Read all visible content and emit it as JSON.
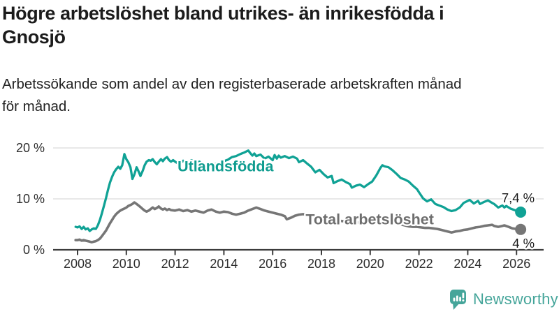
{
  "header": {
    "title_lines": [
      "Högre arbetslöshet bland utrikes- än inrikesfödda i",
      "Gnosjö"
    ],
    "subtitle_lines": [
      "Arbetssökande som andel av den registerbaserade arbetskraften månad",
      "för månad."
    ]
  },
  "footer": {
    "brand": "Newsworthy"
  },
  "colors": {
    "utlandsfodda": "#10a295",
    "utlandsfodda_label": "#0f9c8f",
    "total": "#767676",
    "total_label": "#6e6e6e",
    "axis": "#3c3c3c",
    "grid": "#d9d9d9",
    "tick_text": "#2e2e2e",
    "end_label_text": "#1c1c1c",
    "logo": "#45a59a",
    "background": "#ffffff"
  },
  "chart_data": {
    "type": "line",
    "title": "Högre arbetslöshet bland utrikes- än inrikesfödda i Gnosjö",
    "subtitle": "Arbetssökande som andel av den registerbaserade arbetskraften månad för månad.",
    "xlabel": "",
    "ylabel": "",
    "unit": "%",
    "grid": "horizontal",
    "legend_position": "inline-labels",
    "xlim": [
      2007.9,
      2026.3
    ],
    "ylim": [
      0,
      20
    ],
    "xticks": [
      2008,
      2010,
      2012,
      2014,
      2016,
      2018,
      2020,
      2022,
      2024,
      2026
    ],
    "yticks": [
      {
        "v": 0,
        "label": "0 %"
      },
      {
        "v": 10,
        "label": "10 %"
      },
      {
        "v": 20,
        "label": "20 %"
      }
    ],
    "series": [
      {
        "key": "total",
        "name": "Total arbetslöshet",
        "end_label": "4 %",
        "end_value": 4.0,
        "label_x": 2017.35,
        "label_y": 5.0,
        "points": [
          [
            2007.92,
            1.9
          ],
          [
            2008.0,
            1.9
          ],
          [
            2008.08,
            2.0
          ],
          [
            2008.17,
            1.8
          ],
          [
            2008.25,
            1.9
          ],
          [
            2008.33,
            1.8
          ],
          [
            2008.42,
            1.7
          ],
          [
            2008.5,
            1.6
          ],
          [
            2008.58,
            1.5
          ],
          [
            2008.67,
            1.6
          ],
          [
            2008.75,
            1.7
          ],
          [
            2008.83,
            1.9
          ],
          [
            2008.92,
            2.2
          ],
          [
            2009.0,
            2.7
          ],
          [
            2009.08,
            3.2
          ],
          [
            2009.17,
            3.8
          ],
          [
            2009.25,
            4.5
          ],
          [
            2009.33,
            5.2
          ],
          [
            2009.42,
            5.9
          ],
          [
            2009.5,
            6.5
          ],
          [
            2009.58,
            7.0
          ],
          [
            2009.67,
            7.4
          ],
          [
            2009.75,
            7.7
          ],
          [
            2009.83,
            7.9
          ],
          [
            2009.92,
            8.1
          ],
          [
            2010.0,
            8.3
          ],
          [
            2010.08,
            8.6
          ],
          [
            2010.17,
            8.8
          ],
          [
            2010.25,
            9.0
          ],
          [
            2010.33,
            9.3
          ],
          [
            2010.42,
            9.0
          ],
          [
            2010.5,
            8.7
          ],
          [
            2010.58,
            8.4
          ],
          [
            2010.67,
            8.0
          ],
          [
            2010.75,
            7.7
          ],
          [
            2010.83,
            7.5
          ],
          [
            2010.92,
            7.7
          ],
          [
            2011.0,
            8.0
          ],
          [
            2011.08,
            8.3
          ],
          [
            2011.17,
            8.0
          ],
          [
            2011.25,
            8.2
          ],
          [
            2011.33,
            8.5
          ],
          [
            2011.42,
            8.1
          ],
          [
            2011.5,
            7.9
          ],
          [
            2011.58,
            8.1
          ],
          [
            2011.67,
            7.8
          ],
          [
            2011.75,
            8.0
          ],
          [
            2011.83,
            7.8
          ],
          [
            2012.0,
            7.7
          ],
          [
            2012.17,
            7.9
          ],
          [
            2012.33,
            7.6
          ],
          [
            2012.5,
            7.8
          ],
          [
            2012.67,
            7.5
          ],
          [
            2012.83,
            7.7
          ],
          [
            2013.0,
            7.5
          ],
          [
            2013.17,
            7.3
          ],
          [
            2013.33,
            7.7
          ],
          [
            2013.5,
            7.9
          ],
          [
            2013.67,
            7.5
          ],
          [
            2013.83,
            7.3
          ],
          [
            2014.0,
            7.5
          ],
          [
            2014.17,
            7.4
          ],
          [
            2014.33,
            7.1
          ],
          [
            2014.5,
            6.9
          ],
          [
            2014.67,
            7.1
          ],
          [
            2014.83,
            7.3
          ],
          [
            2015.0,
            7.7
          ],
          [
            2015.17,
            8.0
          ],
          [
            2015.33,
            8.3
          ],
          [
            2015.5,
            8.0
          ],
          [
            2015.67,
            7.7
          ],
          [
            2015.83,
            7.5
          ],
          [
            2016.0,
            7.3
          ],
          [
            2016.17,
            7.1
          ],
          [
            2016.33,
            6.9
          ],
          [
            2016.5,
            6.6
          ],
          [
            2016.58,
            6.0
          ],
          [
            2016.75,
            6.3
          ],
          [
            2016.92,
            6.7
          ],
          [
            2017.08,
            6.9
          ],
          [
            2017.25,
            7.0
          ],
          [
            2017.42,
            6.9
          ],
          [
            2017.58,
            6.7
          ],
          [
            2017.75,
            6.6
          ],
          [
            2017.92,
            6.4
          ],
          [
            2018.08,
            6.2
          ],
          [
            2018.25,
            6.1
          ],
          [
            2018.42,
            5.9
          ],
          [
            2018.58,
            5.8
          ],
          [
            2018.75,
            5.7
          ],
          [
            2018.92,
            5.6
          ],
          [
            2019.08,
            5.6
          ],
          [
            2019.25,
            5.5
          ],
          [
            2019.42,
            5.4
          ],
          [
            2019.58,
            5.3
          ],
          [
            2019.75,
            5.3
          ],
          [
            2019.92,
            5.4
          ],
          [
            2020.08,
            5.6
          ],
          [
            2020.25,
            5.8
          ],
          [
            2020.42,
            6.0
          ],
          [
            2020.58,
            5.9
          ],
          [
            2020.75,
            5.7
          ],
          [
            2020.92,
            5.5
          ],
          [
            2021.08,
            5.2
          ],
          [
            2021.25,
            5.0
          ],
          [
            2021.42,
            4.8
          ],
          [
            2021.58,
            4.6
          ],
          [
            2021.75,
            4.5
          ],
          [
            2021.92,
            4.5
          ],
          [
            2022.08,
            4.4
          ],
          [
            2022.25,
            4.3
          ],
          [
            2022.42,
            4.3
          ],
          [
            2022.58,
            4.2
          ],
          [
            2022.75,
            4.1
          ],
          [
            2022.92,
            3.9
          ],
          [
            2023.08,
            3.7
          ],
          [
            2023.25,
            3.5
          ],
          [
            2023.33,
            3.4
          ],
          [
            2023.5,
            3.6
          ],
          [
            2023.67,
            3.7
          ],
          [
            2023.83,
            3.9
          ],
          [
            2024.0,
            4.0
          ],
          [
            2024.17,
            4.2
          ],
          [
            2024.33,
            4.4
          ],
          [
            2024.5,
            4.5
          ],
          [
            2024.67,
            4.7
          ],
          [
            2024.83,
            4.8
          ],
          [
            2025.0,
            4.9
          ],
          [
            2025.08,
            4.7
          ],
          [
            2025.25,
            4.5
          ],
          [
            2025.42,
            4.7
          ],
          [
            2025.5,
            4.8
          ],
          [
            2025.67,
            4.5
          ],
          [
            2025.83,
            4.2
          ],
          [
            2026.0,
            4.1
          ],
          [
            2026.17,
            4.0
          ]
        ]
      },
      {
        "key": "utlandsfodda",
        "name": "Utlandsfödda",
        "end_label": "7,4 %",
        "end_value": 7.4,
        "label_x": 2012.1,
        "label_y": 15.4,
        "points": [
          [
            2007.92,
            4.5
          ],
          [
            2008.0,
            4.4
          ],
          [
            2008.08,
            4.6
          ],
          [
            2008.17,
            4.1
          ],
          [
            2008.25,
            4.5
          ],
          [
            2008.33,
            4.0
          ],
          [
            2008.42,
            4.2
          ],
          [
            2008.5,
            3.7
          ],
          [
            2008.58,
            4.0
          ],
          [
            2008.67,
            4.2
          ],
          [
            2008.75,
            4.1
          ],
          [
            2008.83,
            4.8
          ],
          [
            2008.92,
            5.9
          ],
          [
            2009.0,
            7.2
          ],
          [
            2009.08,
            8.6
          ],
          [
            2009.17,
            10.2
          ],
          [
            2009.25,
            11.8
          ],
          [
            2009.33,
            13.2
          ],
          [
            2009.42,
            14.4
          ],
          [
            2009.5,
            15.2
          ],
          [
            2009.58,
            15.8
          ],
          [
            2009.67,
            16.3
          ],
          [
            2009.75,
            15.9
          ],
          [
            2009.83,
            16.6
          ],
          [
            2009.92,
            18.8
          ],
          [
            2010.0,
            17.8
          ],
          [
            2010.08,
            17.2
          ],
          [
            2010.17,
            16.2
          ],
          [
            2010.25,
            13.9
          ],
          [
            2010.33,
            14.8
          ],
          [
            2010.42,
            16.2
          ],
          [
            2010.5,
            15.4
          ],
          [
            2010.58,
            14.5
          ],
          [
            2010.67,
            15.5
          ],
          [
            2010.75,
            16.6
          ],
          [
            2010.83,
            17.3
          ],
          [
            2010.92,
            17.6
          ],
          [
            2011.0,
            17.5
          ],
          [
            2011.08,
            17.8
          ],
          [
            2011.17,
            17.2
          ],
          [
            2011.25,
            16.8
          ],
          [
            2011.33,
            17.3
          ],
          [
            2011.42,
            17.8
          ],
          [
            2011.5,
            17.4
          ],
          [
            2011.58,
            17.9
          ],
          [
            2011.67,
            18.2
          ],
          [
            2011.75,
            17.6
          ],
          [
            2011.83,
            17.3
          ],
          [
            2011.92,
            17.6
          ],
          [
            2012.0,
            17.3
          ],
          [
            2012.17,
            16.8
          ],
          [
            2012.33,
            17.5
          ],
          [
            2012.5,
            17.0
          ],
          [
            2012.67,
            17.6
          ],
          [
            2012.83,
            17.1
          ],
          [
            2013.0,
            17.3
          ],
          [
            2013.17,
            16.6
          ],
          [
            2013.33,
            17.1
          ],
          [
            2013.5,
            16.5
          ],
          [
            2013.67,
            16.9
          ],
          [
            2013.83,
            17.1
          ],
          [
            2014.0,
            17.4
          ],
          [
            2014.17,
            17.7
          ],
          [
            2014.33,
            18.2
          ],
          [
            2014.5,
            18.4
          ],
          [
            2014.67,
            18.8
          ],
          [
            2014.83,
            19.1
          ],
          [
            2015.0,
            19.5
          ],
          [
            2015.08,
            19.0
          ],
          [
            2015.17,
            18.5
          ],
          [
            2015.25,
            18.9
          ],
          [
            2015.33,
            18.4
          ],
          [
            2015.5,
            18.7
          ],
          [
            2015.67,
            17.9
          ],
          [
            2015.83,
            18.3
          ],
          [
            2016.0,
            17.6
          ],
          [
            2016.08,
            18.6
          ],
          [
            2016.17,
            17.9
          ],
          [
            2016.25,
            18.5
          ],
          [
            2016.33,
            18.1
          ],
          [
            2016.5,
            18.4
          ],
          [
            2016.67,
            18.0
          ],
          [
            2016.83,
            18.3
          ],
          [
            2017.0,
            17.9
          ],
          [
            2017.08,
            17.2
          ],
          [
            2017.25,
            17.6
          ],
          [
            2017.42,
            16.9
          ],
          [
            2017.58,
            16.3
          ],
          [
            2017.75,
            15.2
          ],
          [
            2017.92,
            15.7
          ],
          [
            2018.08,
            14.9
          ],
          [
            2018.25,
            14.2
          ],
          [
            2018.42,
            14.5
          ],
          [
            2018.5,
            13.1
          ],
          [
            2018.67,
            13.5
          ],
          [
            2018.83,
            13.8
          ],
          [
            2019.0,
            13.3
          ],
          [
            2019.17,
            12.9
          ],
          [
            2019.25,
            12.2
          ],
          [
            2019.42,
            12.6
          ],
          [
            2019.58,
            12.8
          ],
          [
            2019.75,
            12.3
          ],
          [
            2019.92,
            12.9
          ],
          [
            2020.08,
            13.4
          ],
          [
            2020.25,
            14.6
          ],
          [
            2020.42,
            16.1
          ],
          [
            2020.5,
            16.6
          ],
          [
            2020.58,
            16.4
          ],
          [
            2020.75,
            16.2
          ],
          [
            2020.92,
            15.6
          ],
          [
            2021.08,
            14.9
          ],
          [
            2021.25,
            14.1
          ],
          [
            2021.42,
            13.8
          ],
          [
            2021.58,
            13.4
          ],
          [
            2021.75,
            12.6
          ],
          [
            2021.92,
            11.9
          ],
          [
            2022.0,
            11.3
          ],
          [
            2022.17,
            10.1
          ],
          [
            2022.33,
            9.5
          ],
          [
            2022.5,
            9.9
          ],
          [
            2022.67,
            9.0
          ],
          [
            2022.83,
            8.7
          ],
          [
            2023.0,
            8.4
          ],
          [
            2023.17,
            7.9
          ],
          [
            2023.33,
            7.6
          ],
          [
            2023.5,
            7.8
          ],
          [
            2023.67,
            8.3
          ],
          [
            2023.83,
            9.2
          ],
          [
            2024.0,
            9.6
          ],
          [
            2024.08,
            9.8
          ],
          [
            2024.25,
            9.1
          ],
          [
            2024.42,
            9.6
          ],
          [
            2024.5,
            9.0
          ],
          [
            2024.67,
            9.4
          ],
          [
            2024.83,
            9.7
          ],
          [
            2025.0,
            9.2
          ],
          [
            2025.08,
            9.0
          ],
          [
            2025.25,
            8.3
          ],
          [
            2025.42,
            8.7
          ],
          [
            2025.5,
            8.3
          ],
          [
            2025.58,
            8.6
          ],
          [
            2025.75,
            8.1
          ],
          [
            2025.92,
            7.8
          ],
          [
            2026.0,
            7.7
          ],
          [
            2026.17,
            7.4
          ]
        ]
      }
    ]
  }
}
